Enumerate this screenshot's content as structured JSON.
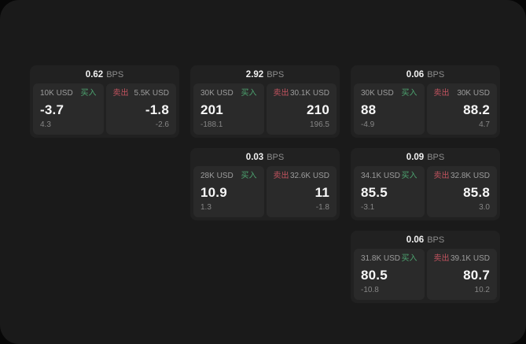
{
  "labels": {
    "buy": "买入",
    "sell": "卖出",
    "bps_unit": "BPS"
  },
  "colors": {
    "buy_green": "#4da470",
    "sell_red": "#c2535f",
    "panel_bg": "#1a1a1a",
    "card_bg": "#212121",
    "tile_bg": "#2a2a2a",
    "primary_text": "#f7f7f7",
    "muted_text": "#9c9c9c"
  },
  "cards": [
    {
      "bps": "0.62",
      "buy": {
        "amount": "10K USD",
        "price": "-3.7",
        "delta": "4.3"
      },
      "sell": {
        "amount": "5.5K USD",
        "price": "-1.8",
        "delta": "-2.6"
      }
    },
    {
      "bps": "2.92",
      "buy": {
        "amount": "30K USD",
        "price": "201",
        "delta": "-188.1"
      },
      "sell": {
        "amount": "30.1K USD",
        "price": "210",
        "delta": "196.5"
      }
    },
    {
      "bps": "0.06",
      "buy": {
        "amount": "30K USD",
        "price": "88",
        "delta": "-4.9"
      },
      "sell": {
        "amount": "30K USD",
        "price": "88.2",
        "delta": "4.7"
      }
    },
    {
      "bps": "0.03",
      "buy": {
        "amount": "28K USD",
        "price": "10.9",
        "delta": "1.3"
      },
      "sell": {
        "amount": "32.6K USD",
        "price": "11",
        "delta": "-1.8"
      }
    },
    {
      "bps": "0.09",
      "buy": {
        "amount": "34.1K USD",
        "price": "85.5",
        "delta": "-3.1"
      },
      "sell": {
        "amount": "32.8K USD",
        "price": "85.8",
        "delta": "3.0"
      }
    },
    {
      "bps": "0.06",
      "buy": {
        "amount": "31.8K USD",
        "price": "80.5",
        "delta": "-10.8"
      },
      "sell": {
        "amount": "39.1K USD",
        "price": "80.7",
        "delta": "10.2"
      }
    }
  ]
}
